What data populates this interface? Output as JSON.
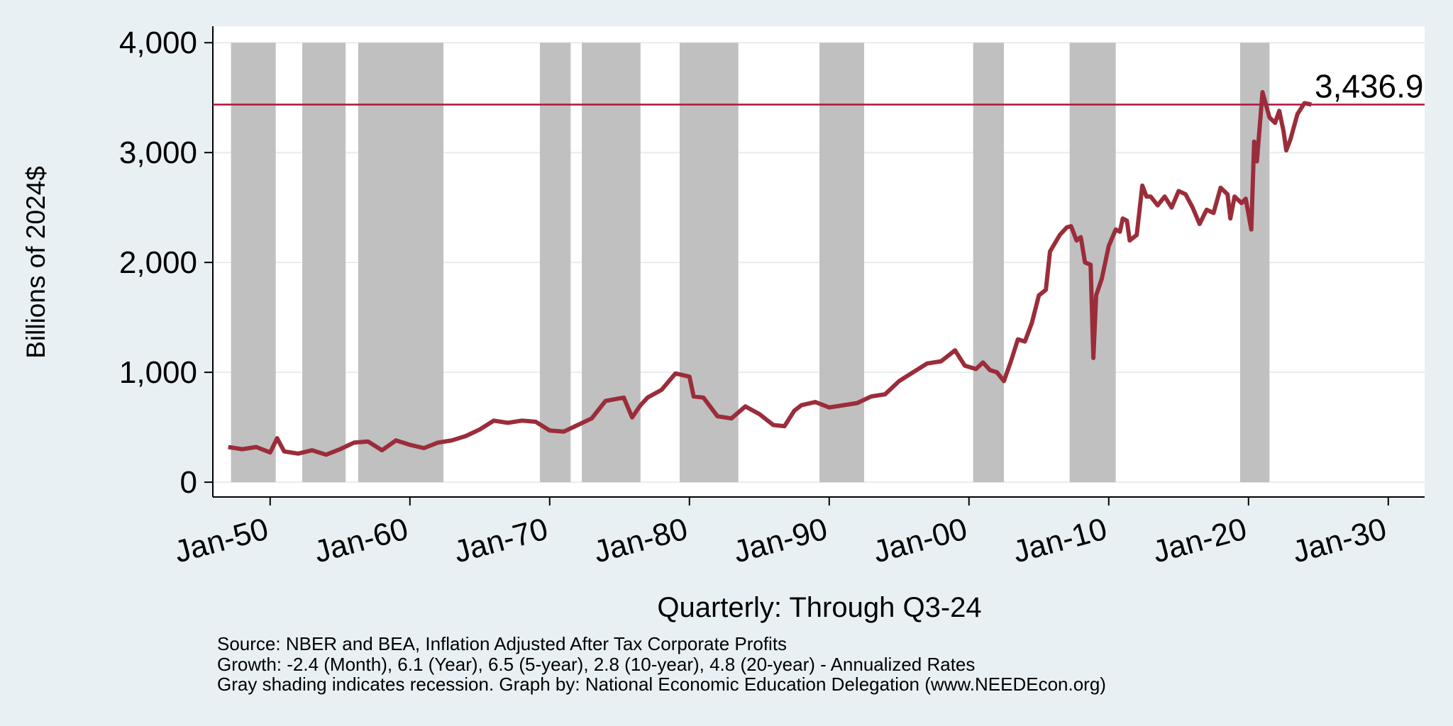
{
  "chart_data": {
    "type": "line",
    "x_label": "Quarterly: Through Q3-24",
    "y_label": "Billions of 2024$",
    "notes": [
      "Source: NBER and BEA, Inflation Adjusted After Tax Corporate Profits",
      "Growth: -2.4 (Month), 6.1 (Year), 6.5 (5-year), 2.8 (10-year), 4.8 (20-year) - Annualized Rates",
      "Gray shading indicates recession. Graph by: National Economic Education Delegation (www.NEEDEcon.org)"
    ],
    "x": [
      1947,
      1948,
      1949,
      1950,
      1950.5,
      1951,
      1952,
      1953,
      1954,
      1955,
      1956,
      1957,
      1958,
      1959,
      1960,
      1961,
      1962,
      1963,
      1964,
      1965,
      1966,
      1967,
      1968,
      1969,
      1970,
      1971,
      1972,
      1973,
      1974,
      1975.3,
      1975.9,
      1976.5,
      1977,
      1978,
      1979,
      1980,
      1980.3,
      1981,
      1982,
      1983,
      1984,
      1985,
      1986,
      1986.8,
      1987.5,
      1988,
      1989,
      1990,
      1991,
      1992,
      1993,
      1994,
      1995,
      1996,
      1997,
      1998,
      1999,
      1999.7,
      2000.5,
      2001,
      2001.5,
      2002,
      2002.5,
      2003,
      2003.5,
      2004,
      2004.5,
      2005,
      2005.5,
      2005.8,
      2006.5,
      2007,
      2007.3,
      2007.7,
      2008,
      2008.3,
      2008.7,
      2008.9,
      2009.1,
      2009.5,
      2010,
      2010.5,
      2010.8,
      2011,
      2011.3,
      2011.5,
      2012,
      2012.4,
      2012.7,
      2013,
      2013.5,
      2014,
      2014.5,
      2015,
      2015.5,
      2016,
      2016.5,
      2017,
      2017.5,
      2018,
      2018.5,
      2018.7,
      2019,
      2019.5,
      2019.8,
      2020.2,
      2020.4,
      2020.6,
      2021,
      2021.5,
      2021.9,
      2022.2,
      2022.5,
      2022.7,
      2023,
      2023.5,
      2024,
      2024.5
    ],
    "series": [
      {
        "color": "#9b2d3a",
        "values": [
          320,
          300,
          320,
          270,
          400,
          280,
          260,
          290,
          250,
          300,
          360,
          370,
          290,
          380,
          340,
          310,
          360,
          380,
          420,
          480,
          560,
          540,
          560,
          550,
          470,
          460,
          520,
          580,
          740,
          770,
          590,
          700,
          770,
          840,
          990,
          960,
          780,
          770,
          600,
          580,
          690,
          620,
          520,
          510,
          650,
          700,
          730,
          680,
          700,
          720,
          780,
          800,
          920,
          1000,
          1080,
          1100,
          1200,
          1060,
          1030,
          1090,
          1020,
          1000,
          920,
          1100,
          1300,
          1280,
          1450,
          1700,
          1750,
          2100,
          2250,
          2320,
          2330,
          2200,
          2230,
          2000,
          1980,
          1130,
          1700,
          1850,
          2150,
          2300,
          2280,
          2400,
          2380,
          2200,
          2250,
          2700,
          2600,
          2600,
          2520,
          2600,
          2500,
          2650,
          2620,
          2500,
          2350,
          2480,
          2450,
          2680,
          2620,
          2400,
          2600,
          2540,
          2580,
          2300,
          3100,
          2920,
          3550,
          3320,
          3270,
          3380,
          3200,
          3020,
          3120,
          3350,
          3450,
          3437
        ]
      }
    ],
    "reference_line": {
      "value": 3436.9,
      "label": "3,436.9",
      "color": "#b0123b"
    },
    "recessions": [
      [
        1947.2,
        1950.4
      ],
      [
        1952.3,
        1955.4
      ],
      [
        1956.3,
        1962.4
      ],
      [
        1969.3,
        1971.5
      ],
      [
        1972.3,
        1976.5
      ],
      [
        1979.3,
        1983.5
      ],
      [
        1989.3,
        1992.5
      ],
      [
        2000.3,
        2002.5
      ],
      [
        2007.2,
        2010.5
      ],
      [
        2019.4,
        2021.5
      ]
    ],
    "recession_color": "#c0c0c0",
    "xlim": [
      1945.9,
      2032.6
    ],
    "ylim": [
      -135,
      4150
    ],
    "xticks": [
      {
        "value": 1950,
        "label": "Jan-50"
      },
      {
        "value": 1960,
        "label": "Jan-60"
      },
      {
        "value": 1970,
        "label": "Jan-70"
      },
      {
        "value": 1980,
        "label": "Jan-80"
      },
      {
        "value": 1990,
        "label": "Jan-90"
      },
      {
        "value": 2000,
        "label": "Jan-00"
      },
      {
        "value": 2010,
        "label": "Jan-10"
      },
      {
        "value": 2020,
        "label": "Jan-20"
      },
      {
        "value": 2030,
        "label": "Jan-30"
      }
    ],
    "yticks": [
      0,
      {
        "value": 1000,
        "label": "1,000"
      },
      {
        "value": 2000,
        "label": "2,000"
      },
      {
        "value": 3000,
        "label": "3,000"
      },
      {
        "value": 4000,
        "label": "4,000"
      }
    ],
    "grid": true
  }
}
